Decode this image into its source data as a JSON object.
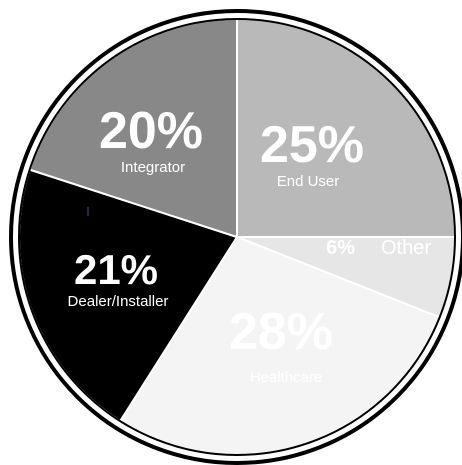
{
  "chart_data": {
    "type": "pie",
    "slices": [
      {
        "label": "End User",
        "percent_label": "25%",
        "value": 25,
        "color": "#b9b9b9",
        "text_color": "#ffffff"
      },
      {
        "label": "Other",
        "percent_label": "6%",
        "value": 6,
        "color": "#e6e6e6",
        "text_color": "#ffffff"
      },
      {
        "label": "Healthcare",
        "percent_label": "28%",
        "value": 28,
        "color": "#f4f4f4",
        "text_color": "#ffffff"
      },
      {
        "label": "Dealer/Installer",
        "percent_label": "21%",
        "value": 21,
        "color": "#000000",
        "text_color": "#ffffff"
      },
      {
        "label": "Integrator",
        "percent_label": "20%",
        "value": 20,
        "color": "#888888",
        "text_color": "#ffffff"
      }
    ],
    "start_angle_deg": 0,
    "direction": "clockwise",
    "border_color": "#000000"
  }
}
